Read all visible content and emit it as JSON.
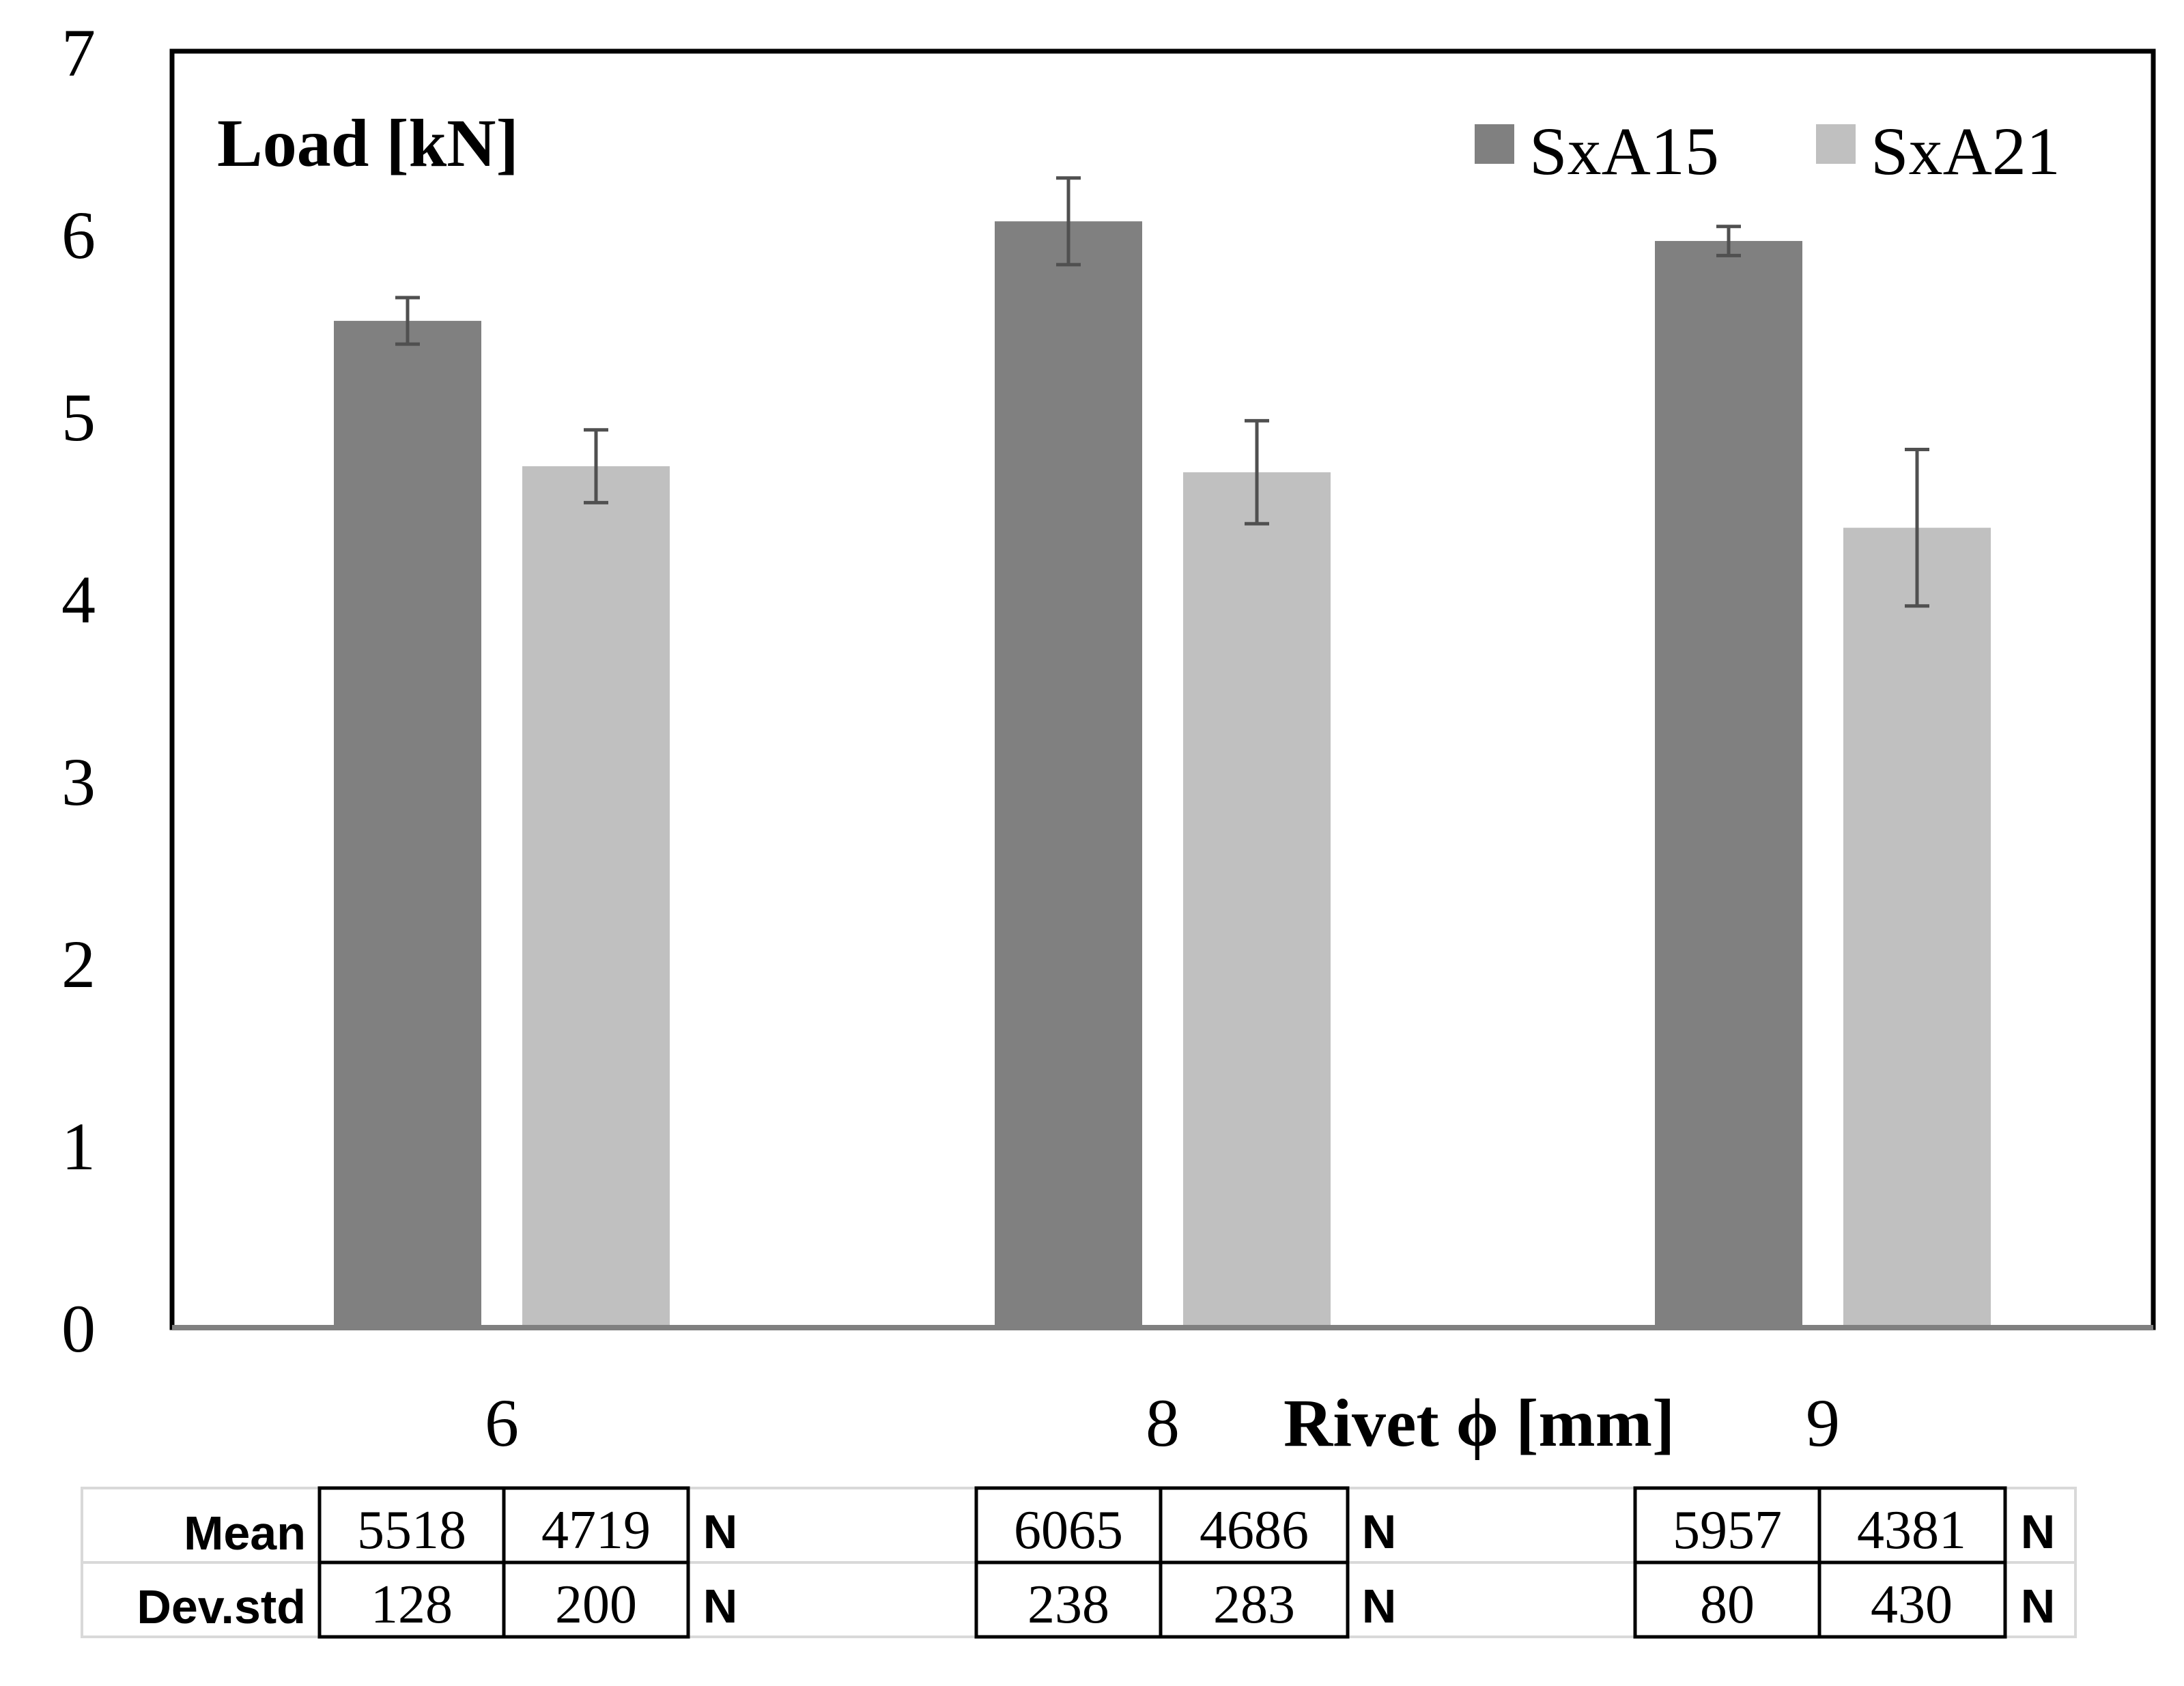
{
  "chart_data": {
    "type": "bar",
    "ylabel": "Load [kN]",
    "xlabel": "Rivet ϕ [mm]",
    "categories": [
      "6",
      "8",
      "9"
    ],
    "ylim": [
      0,
      7
    ],
    "yticks": [
      "0",
      "1",
      "2",
      "3",
      "4",
      "5",
      "6",
      "7"
    ],
    "grid": false,
    "legend_position": "top-right",
    "series": [
      {
        "name": "SxA15",
        "color": "#808080",
        "values": [
          5.518,
          6.065,
          5.957
        ],
        "errors": [
          0.128,
          0.238,
          0.08
        ]
      },
      {
        "name": "SxA21",
        "color": "#c0c0c0",
        "values": [
          4.719,
          4.686,
          4.381
        ],
        "errors": [
          0.2,
          0.283,
          0.43
        ]
      }
    ]
  },
  "table": {
    "row_labels": [
      "Mean",
      "Dev.std"
    ],
    "unit": "N",
    "groups": [
      {
        "mean": [
          "5518",
          "4719"
        ],
        "std": [
          "128",
          "200"
        ]
      },
      {
        "mean": [
          "6065",
          "4686"
        ],
        "std": [
          "238",
          "283"
        ]
      },
      {
        "mean": [
          "5957",
          "4381"
        ],
        "std": [
          "80",
          "430"
        ]
      }
    ]
  }
}
